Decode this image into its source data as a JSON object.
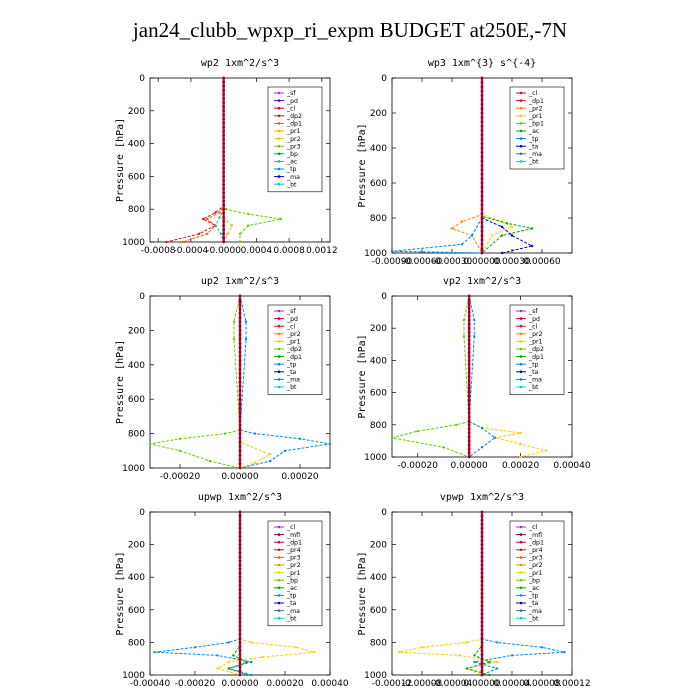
{
  "figure": {
    "title": "jan24_clubb_wpxp_ri_expm  BUDGET at250E,-7N"
  },
  "chart_data": [
    {
      "type": "line",
      "title": "wp2  1xm^2/s^3",
      "ylabel": "Pressure [hPa]",
      "xlim": [
        -0.0009,
        0.0013
      ],
      "ylim": [
        1000,
        0
      ],
      "xticks": [
        -0.0008,
        -0.0004,
        0.0,
        0.0004,
        0.0008,
        0.0012
      ],
      "xtick_labels": [
        "-0.0008",
        "-0.0004",
        "-0.0000",
        "0.0004",
        "0.0008",
        "0.0012"
      ],
      "yticks": [
        0,
        200,
        400,
        600,
        800,
        1000
      ],
      "legend": [
        "_sf",
        "_pd",
        "_cl",
        "_dp2",
        "_dp1",
        "_pr1",
        "_pr2",
        "_pr3",
        "_bp",
        "_ac",
        "_tp",
        "_ma",
        "_bt"
      ],
      "legend_colors": [
        "#9933cc",
        "#6600aa",
        "#cc0033",
        "#dd1111",
        "#ff5500",
        "#ffaa00",
        "#eecc00",
        "#66cc00",
        "#00aa00",
        "#22bb88",
        "#0088ff",
        "#0000cc",
        "#00cccc"
      ],
      "legend_placement": "top-right",
      "series": [
        {
          "name": "_pr1",
          "color": "#ffaa00",
          "x": [
            0,
            0,
            0,
            0,
            0.0001,
            5e-05,
            0
          ],
          "y": [
            0,
            750,
            800,
            850,
            900,
            950,
            1000
          ]
        },
        {
          "name": "_pr3",
          "color": "#66cc00",
          "x": [
            0,
            0,
            3e-05,
            0.0003,
            0.0007,
            0.0003,
            0.0002,
            0.0002
          ],
          "y": [
            0,
            770,
            800,
            830,
            860,
            900,
            950,
            1000
          ]
        },
        {
          "name": "_dp1",
          "color": "#ff5500",
          "x": [
            0,
            0,
            -5e-05,
            -0.0002,
            -0.0001,
            -0.0002,
            -0.0005
          ],
          "y": [
            0,
            780,
            820,
            860,
            900,
            950,
            1000
          ]
        },
        {
          "name": "_dp2",
          "color": "#dd1111",
          "x": [
            0,
            0,
            -0.0001,
            -0.00025,
            -0.0001,
            -0.0003,
            -0.0007
          ],
          "y": [
            0,
            780,
            820,
            860,
            900,
            950,
            1000
          ]
        },
        {
          "name": "_ac",
          "color": "#22bb88",
          "x": [
            0,
            0,
            -5e-05,
            -0.0001,
            -3e-05,
            0
          ],
          "y": [
            0,
            800,
            850,
            900,
            950,
            1000
          ]
        },
        {
          "name": "_ma",
          "color": "#0000cc",
          "x": [
            0,
            0,
            0,
            0
          ],
          "y": [
            0,
            500,
            900,
            1000
          ]
        }
      ]
    },
    {
      "type": "line",
      "title": "wp3  1xm^{3} s^{-4}",
      "ylabel": "Pressure [hPa]",
      "xlim": [
        -0.0009,
        0.0009
      ],
      "ylim": [
        1000,
        0
      ],
      "xticks": [
        -0.0009,
        -0.0006,
        -0.0003,
        0.0,
        0.0003,
        0.0006
      ],
      "xtick_labels": [
        "-0.00090",
        "-0.00060",
        "-0.00030",
        "0.00000",
        "0.00030",
        "0.00060"
      ],
      "yticks": [
        0,
        200,
        400,
        600,
        800,
        1000
      ],
      "legend": [
        "_cl",
        "_dp1",
        "_pr2",
        "_pr1",
        "_bp1",
        "_ac",
        "_tp",
        "_ta",
        "_ma",
        "_bt"
      ],
      "legend_colors": [
        "#cc0033",
        "#dd1111",
        "#ff8800",
        "#ffcc00",
        "#66cc00",
        "#00aa00",
        "#0088ff",
        "#0000cc",
        "#3377aa",
        "#00cccc"
      ],
      "legend_placement": "top-right",
      "series": [
        {
          "name": "_pr2",
          "color": "#ff8800",
          "x": [
            0,
            0,
            -0.0002,
            -0.0003,
            -0.0001,
            0
          ],
          "y": [
            0,
            780,
            820,
            860,
            900,
            1000
          ]
        },
        {
          "name": "_pr1",
          "color": "#ffcc00",
          "x": [
            0,
            0,
            0.0002,
            0.0003,
            0.0001,
            0
          ],
          "y": [
            0,
            780,
            820,
            850,
            900,
            1000
          ]
        },
        {
          "name": "_ac",
          "color": "#00aa00",
          "x": [
            0,
            0,
            0.00025,
            0.0005,
            0.0002,
            0
          ],
          "y": [
            0,
            790,
            830,
            860,
            900,
            1000
          ]
        },
        {
          "name": "_tp",
          "color": "#0088ff",
          "x": [
            0,
            0,
            -0.0001,
            -0.0002,
            -0.0009,
            0
          ],
          "y": [
            0,
            800,
            900,
            950,
            990,
            1000
          ]
        },
        {
          "name": "_ta",
          "color": "#0000cc",
          "x": [
            0,
            0,
            0.0002,
            0.0003,
            0.0005,
            0.0002
          ],
          "y": [
            0,
            800,
            850,
            900,
            960,
            1000
          ]
        },
        {
          "name": "_cl",
          "color": "#cc0033",
          "x": [
            0,
            0,
            0
          ],
          "y": [
            0,
            500,
            1000
          ]
        }
      ]
    },
    {
      "type": "line",
      "title": "up2  1xm^2/s^3",
      "ylabel": "Pressure [hPa]",
      "xlim": [
        -0.0003,
        0.0003
      ],
      "ylim": [
        1000,
        0
      ],
      "xticks": [
        -0.0002,
        0.0,
        0.0002
      ],
      "xtick_labels": [
        "-0.00020",
        "0.00000",
        "0.00020"
      ],
      "yticks": [
        0,
        200,
        400,
        600,
        800,
        1000
      ],
      "legend": [
        "_sf",
        "_pd",
        "_cl",
        "_pr2",
        "_pr1",
        "_dp2",
        "_dp1",
        "_tp",
        "_ta",
        "_ma",
        "_bt"
      ],
      "legend_colors": [
        "#9933cc",
        "#cc0033",
        "#dd1111",
        "#ff8800",
        "#ffcc00",
        "#66cc00",
        "#00aa00",
        "#0088ff",
        "#0000cc",
        "#3377aa",
        "#00cccc"
      ],
      "legend_placement": "top-right",
      "series": [
        {
          "name": "_dp2",
          "color": "#66cc00",
          "x": [
            0,
            -2e-05,
            -2e-05,
            0,
            -5e-05,
            -0.0002,
            -0.0003,
            -0.0002,
            -0.0001,
            0
          ],
          "y": [
            0,
            150,
            250,
            780,
            800,
            830,
            860,
            900,
            960,
            1000
          ]
        },
        {
          "name": "_tp",
          "color": "#0088ff",
          "x": [
            0,
            2e-05,
            2e-05,
            0,
            5e-05,
            0.0002,
            0.0003,
            0.00015,
            0.0001,
            0
          ],
          "y": [
            0,
            150,
            250,
            780,
            800,
            830,
            860,
            900,
            960,
            1000
          ]
        },
        {
          "name": "_pr1",
          "color": "#ffcc00",
          "x": [
            0,
            0,
            0,
            0.0001,
            5e-05,
            0
          ],
          "y": [
            0,
            780,
            850,
            920,
            970,
            1000
          ]
        },
        {
          "name": "_cl",
          "color": "#dd1111",
          "x": [
            0,
            0,
            0
          ],
          "y": [
            0,
            500,
            1000
          ]
        }
      ]
    },
    {
      "type": "line",
      "title": "vp2  1xm^2/s^3",
      "ylabel": "Pressure [hPa]",
      "xlim": [
        -0.0003,
        0.0004
      ],
      "ylim": [
        1000,
        0
      ],
      "xticks": [
        -0.0002,
        0.0,
        0.0002,
        0.0004
      ],
      "xtick_labels": [
        "-0.00020",
        "0.00000",
        "0.00020",
        "0.00040"
      ],
      "yticks": [
        0,
        200,
        400,
        600,
        800,
        1000
      ],
      "legend": [
        "_sf",
        "_pd",
        "_cl",
        "_pr2",
        "_pr1",
        "_dp2",
        "_dp1",
        "_tp",
        "_ta",
        "_ma",
        "_bt"
      ],
      "legend_colors": [
        "#9933cc",
        "#cc0033",
        "#dd1111",
        "#ff8800",
        "#ffcc00",
        "#66cc00",
        "#00aa00",
        "#0088ff",
        "#0000cc",
        "#3377aa",
        "#00cccc"
      ],
      "legend_placement": "top-right",
      "series": [
        {
          "name": "_dp2",
          "color": "#66cc00",
          "x": [
            0,
            -2e-05,
            -2e-05,
            0,
            -5e-05,
            -0.0002,
            -0.0003,
            -0.0001,
            0
          ],
          "y": [
            0,
            150,
            250,
            780,
            800,
            840,
            880,
            940,
            1000
          ]
        },
        {
          "name": "_pr1",
          "color": "#ffcc00",
          "x": [
            0,
            0,
            5e-05,
            0.0002,
            0.0001,
            0.0002,
            0.0003,
            0.0002
          ],
          "y": [
            0,
            780,
            820,
            850,
            880,
            920,
            960,
            1000
          ]
        },
        {
          "name": "_tp",
          "color": "#0088ff",
          "x": [
            0,
            2e-05,
            2e-05,
            0,
            5e-05,
            0.0001,
            5e-05,
            0
          ],
          "y": [
            0,
            150,
            250,
            780,
            820,
            880,
            940,
            1000
          ]
        },
        {
          "name": "_cl",
          "color": "#dd1111",
          "x": [
            0,
            0,
            0
          ],
          "y": [
            0,
            500,
            1000
          ]
        }
      ]
    },
    {
      "type": "line",
      "title": "upwp  1xm^2/s^3",
      "ylabel": "Pressure [hPa]",
      "xlim": [
        -0.0004,
        0.0004
      ],
      "ylim": [
        1000,
        0
      ],
      "xticks": [
        -0.0004,
        -0.0002,
        0.0,
        0.0002,
        0.0004
      ],
      "xtick_labels": [
        "-0.00040",
        "-0.00020",
        "0.00000",
        "0.00020",
        "0.00040"
      ],
      "yticks": [
        0,
        200,
        400,
        600,
        800,
        1000
      ],
      "legend": [
        "_cl",
        "_mfl",
        "_dp1",
        "_pr4",
        "_pr3",
        "_pr2",
        "_pr1",
        "_bp",
        "_ac",
        "_tp",
        "_ta",
        "_ma",
        "_bt"
      ],
      "legend_colors": [
        "#9933cc",
        "#880044",
        "#cc0033",
        "#dd1111",
        "#ff5500",
        "#ff8800",
        "#ffcc00",
        "#66cc00",
        "#00aa00",
        "#0088ff",
        "#0000cc",
        "#3377aa",
        "#00cccc"
      ],
      "legend_placement": "top-right",
      "series": [
        {
          "name": "_tp",
          "color": "#0088ff",
          "x": [
            0,
            0,
            -5e-05,
            -0.0002,
            -0.00038,
            -0.0001,
            5e-05,
            -5e-05,
            5e-05
          ],
          "y": [
            0,
            780,
            800,
            830,
            860,
            880,
            920,
            960,
            1000
          ]
        },
        {
          "name": "_pr1",
          "color": "#ffcc00",
          "x": [
            0,
            0,
            5e-05,
            0.00025,
            0.00033,
            0.0001,
            -5e-05,
            -0.0001,
            0
          ],
          "y": [
            0,
            780,
            800,
            830,
            860,
            890,
            920,
            960,
            1000
          ]
        },
        {
          "name": "_ac",
          "color": "#00aa00",
          "x": [
            0,
            0,
            -3e-05,
            3e-05,
            -5e-05,
            3e-05
          ],
          "y": [
            0,
            820,
            880,
            920,
            960,
            1000
          ]
        },
        {
          "name": "_dp1",
          "color": "#cc0033",
          "x": [
            0,
            0,
            0
          ],
          "y": [
            0,
            500,
            1000
          ]
        }
      ]
    },
    {
      "type": "line",
      "title": "vpwp  1xm^2/s^3",
      "ylabel": "Pressure [hPa]",
      "xlim": [
        -0.00012,
        0.00012
      ],
      "ylim": [
        1000,
        0
      ],
      "xticks": [
        -0.00012,
        -8e-05,
        -4e-05,
        0.0,
        4e-05,
        8e-05,
        0.00012
      ],
      "xtick_labels": [
        "-0.00012",
        "-0.00008",
        "-0.00004",
        "0.00000",
        "0.00004",
        "0.00008",
        "0.00012"
      ],
      "yticks": [
        0,
        200,
        400,
        600,
        800,
        1000
      ],
      "legend": [
        "_cl",
        "_mfl",
        "_dp1",
        "_pr4",
        "_pr3",
        "_pr2",
        "_pr1",
        "_bp",
        "_ac",
        "_tp",
        "_ta",
        "_ma",
        "_bt"
      ],
      "legend_colors": [
        "#9933cc",
        "#880044",
        "#cc0033",
        "#dd1111",
        "#ff5500",
        "#ff8800",
        "#ffcc00",
        "#66cc00",
        "#00aa00",
        "#0088ff",
        "#0000cc",
        "#3377aa",
        "#00cccc"
      ],
      "legend_placement": "top-right",
      "series": [
        {
          "name": "_pr1",
          "color": "#ffcc00",
          "x": [
            0,
            0,
            -2e-05,
            -8e-05,
            -0.00011,
            -3e-05,
            2e-05,
            -2e-05,
            0
          ],
          "y": [
            0,
            780,
            800,
            830,
            860,
            880,
            920,
            960,
            1000
          ]
        },
        {
          "name": "_tp",
          "color": "#0088ff",
          "x": [
            0,
            0,
            2e-05,
            8e-05,
            0.00011,
            4e-05,
            -1e-05,
            2e-05,
            0
          ],
          "y": [
            0,
            780,
            800,
            830,
            860,
            880,
            920,
            960,
            1000
          ]
        },
        {
          "name": "_ac",
          "color": "#00aa00",
          "x": [
            0,
            0,
            -1e-05,
            1e-05,
            -2e-05,
            1e-05
          ],
          "y": [
            0,
            820,
            880,
            920,
            960,
            1000
          ]
        },
        {
          "name": "_dp1",
          "color": "#cc0033",
          "x": [
            0,
            0,
            0
          ],
          "y": [
            0,
            500,
            1000
          ]
        }
      ]
    }
  ]
}
